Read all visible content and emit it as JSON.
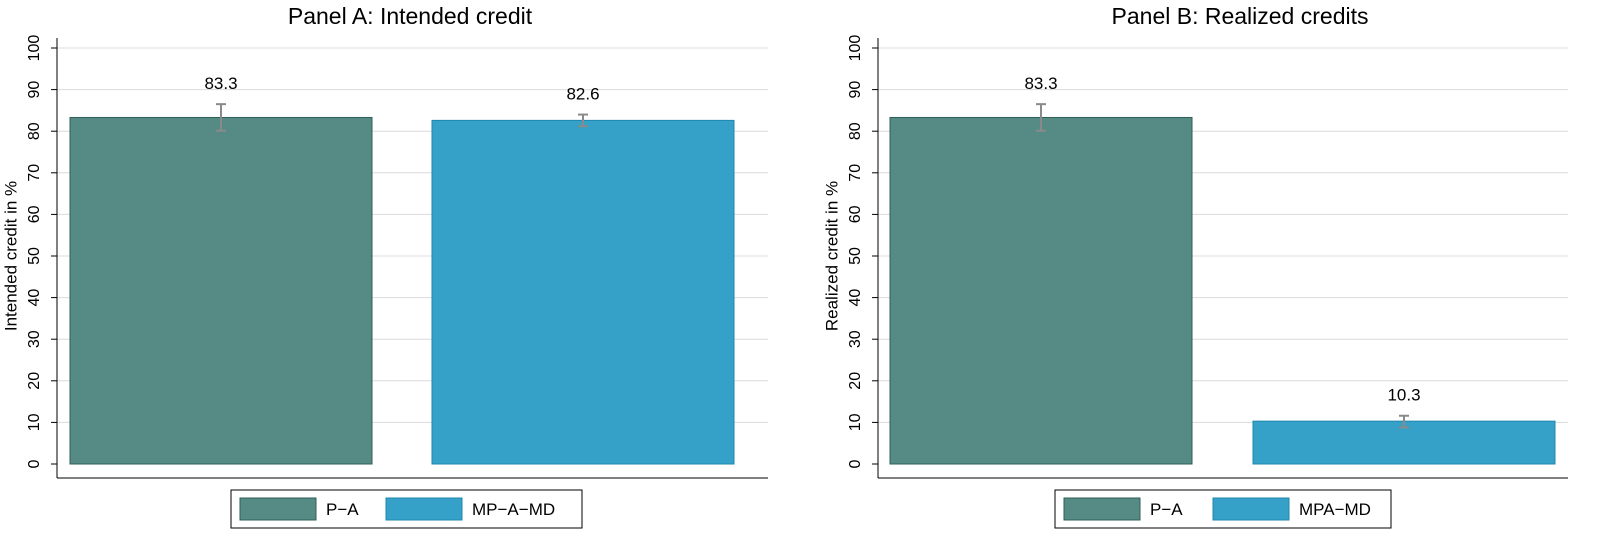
{
  "chart_data": [
    {
      "type": "bar",
      "title": "Panel A: Intended credit",
      "ylabel": "Intended credit in %",
      "xlabel": "",
      "ylim": [
        0,
        100
      ],
      "yticks": [
        0,
        10,
        20,
        30,
        40,
        50,
        60,
        70,
        80,
        90,
        100
      ],
      "grid": true,
      "legend_position": "bottom",
      "series": [
        {
          "name": "P−A",
          "value": 83.3,
          "value_label": "83.3",
          "ci": [
            80.1,
            86.5
          ],
          "color": "#558b84"
        },
        {
          "name": "MP−A−MD",
          "value": 82.6,
          "value_label": "82.6",
          "ci": [
            81.2,
            84.0
          ],
          "color": "#36a1c8"
        }
      ]
    },
    {
      "type": "bar",
      "title": "Panel B: Realized credits",
      "ylabel": "Realized credit in %",
      "xlabel": "",
      "ylim": [
        0,
        100
      ],
      "yticks": [
        0,
        10,
        20,
        30,
        40,
        50,
        60,
        70,
        80,
        90,
        100
      ],
      "grid": true,
      "legend_position": "bottom",
      "series": [
        {
          "name": "P−A",
          "value": 83.3,
          "value_label": "83.3",
          "ci": [
            80.1,
            86.5
          ],
          "color": "#558b84"
        },
        {
          "name": "MPA−MD",
          "value": 10.3,
          "value_label": "10.3",
          "ci": [
            8.8,
            11.6
          ],
          "color": "#36a1c8"
        }
      ]
    }
  ]
}
